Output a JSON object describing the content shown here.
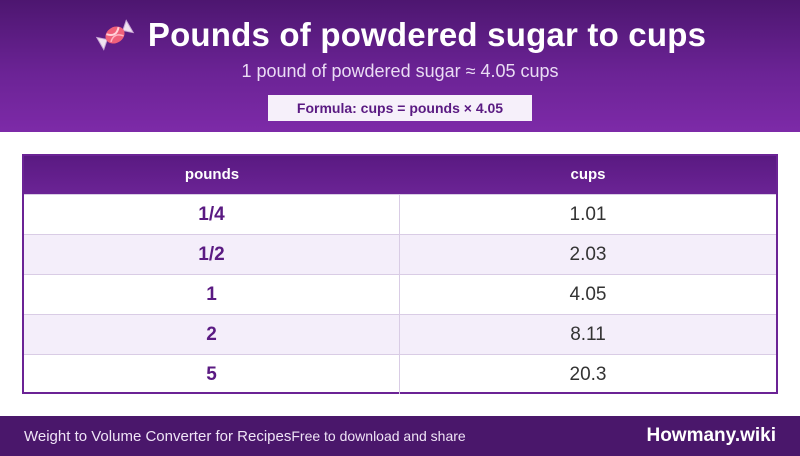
{
  "header": {
    "title": "Pounds of powdered sugar to cups",
    "subtitle": "1 pound of powdered sugar ≈ 4.05 cups",
    "formula": "Formula: cups = pounds × 4.05",
    "icon": "candy-icon"
  },
  "table": {
    "columns": [
      "pounds",
      "cups"
    ],
    "rows": [
      {
        "pounds": "1/4",
        "cups": "1.01"
      },
      {
        "pounds": "1/2",
        "cups": "2.03"
      },
      {
        "pounds": "1",
        "cups": "4.05"
      },
      {
        "pounds": "2",
        "cups": "8.11"
      },
      {
        "pounds": "5",
        "cups": "20.3"
      }
    ]
  },
  "footer": {
    "left": "Weight to Volume Converter for Recipes",
    "left_sub": "Free to download and share",
    "brand": "Howmany.wiki"
  },
  "colors": {
    "primary": "#6b2395",
    "dark": "#4a176b",
    "accent_text": "#5a1a82"
  }
}
